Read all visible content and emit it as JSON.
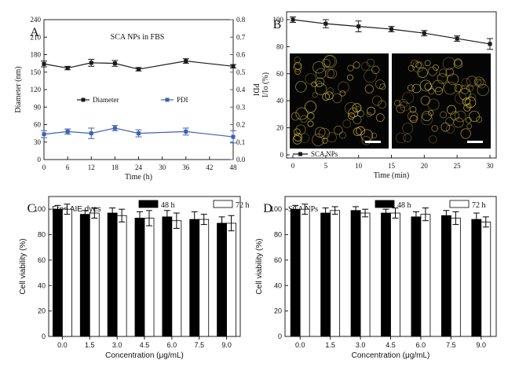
{
  "chart_data": [
    {
      "panel": "A",
      "type": "line",
      "annotation": "SCA NPs in FBS",
      "xlabel": "Time (h)",
      "ylabel": "Diameter (nm)",
      "y2label": "PDI",
      "xlim": [
        0,
        48
      ],
      "xticks": [
        0,
        6,
        12,
        18,
        24,
        30,
        36,
        42,
        48
      ],
      "ylim": [
        0,
        240
      ],
      "yticks": [
        0,
        30,
        60,
        90,
        120,
        150,
        180,
        210,
        240
      ],
      "y2lim": [
        0,
        0.8
      ],
      "y2ticks": [
        "0.0",
        "0.1",
        "0.2",
        "0.3",
        "0.4",
        "0.5",
        "0.6",
        "0.7",
        "0.8"
      ],
      "series": [
        {
          "name": "Diameter",
          "axis": "left",
          "color": "#1a1a1a",
          "marker": "square",
          "x": [
            0,
            6,
            12,
            18,
            24,
            36,
            48
          ],
          "values": [
            164,
            157,
            166,
            165,
            155,
            169,
            160
          ],
          "errors": [
            5,
            3,
            6,
            5,
            3,
            4,
            3
          ]
        },
        {
          "name": "PDI",
          "axis": "right",
          "color": "#3a62b0",
          "marker": "square",
          "x": [
            0,
            6,
            12,
            18,
            24,
            36,
            48
          ],
          "values": [
            0.145,
            0.16,
            0.15,
            0.18,
            0.15,
            0.16,
            0.13
          ],
          "errors": [
            0.02,
            0.015,
            0.03,
            0.015,
            0.02,
            0.02,
            0.035
          ]
        }
      ]
    },
    {
      "panel": "B",
      "type": "line",
      "xlabel": "Time (min)",
      "ylabel": "I/Io (%)",
      "xlim": [
        0,
        30
      ],
      "xticks": [
        0,
        5,
        10,
        15,
        20,
        25,
        30
      ],
      "ylim": [
        0,
        100
      ],
      "yticks": [
        0,
        20,
        40,
        60,
        80,
        100
      ],
      "series": [
        {
          "name": "SCA NPs",
          "color": "#1a1a1a",
          "marker": "square",
          "x": [
            0,
            5,
            10,
            15,
            20,
            25,
            30
          ],
          "values": [
            100,
            97,
            95,
            93,
            90,
            86,
            82
          ],
          "errors": [
            2,
            3,
            4,
            2,
            2,
            2,
            4
          ]
        }
      ],
      "insets": [
        "fluorescence-micrograph-1",
        "fluorescence-micrograph-2"
      ]
    },
    {
      "panel": "C",
      "type": "bar",
      "annotation": "Free AIE dyes",
      "xlabel": "Concentration (μg/mL)",
      "ylabel": "Cell viability (%)",
      "categories": [
        "0.0",
        "1.5",
        "3.0",
        "4.5",
        "6.0",
        "7.5",
        "9.0"
      ],
      "ylim": [
        0,
        110
      ],
      "yticks": [
        0,
        20,
        40,
        60,
        80,
        100
      ],
      "series": [
        {
          "name": "48 h",
          "color": "#000000",
          "values": [
            100,
            96,
            97,
            93,
            94,
            92,
            89
          ],
          "errors": [
            3,
            3,
            4,
            5,
            5,
            6,
            5
          ]
        },
        {
          "name": "72 h",
          "color": "#ffffff",
          "values": [
            100,
            97,
            95,
            93,
            91,
            92,
            89
          ],
          "errors": [
            4,
            4,
            5,
            6,
            6,
            4,
            6
          ]
        }
      ]
    },
    {
      "panel": "D",
      "type": "bar",
      "annotation": "SCA NPs",
      "xlabel": "Concentration (μg/mL)",
      "ylabel": "Cell viability (%)",
      "categories": [
        "0.0",
        "1.5",
        "3.0",
        "4.5",
        "6.0",
        "7.5",
        "9.0"
      ],
      "ylim": [
        0,
        110
      ],
      "yticks": [
        0,
        20,
        40,
        60,
        80,
        100
      ],
      "series": [
        {
          "name": "48 h",
          "color": "#000000",
          "values": [
            100,
            97,
            99,
            97,
            94,
            95,
            92
          ],
          "errors": [
            3,
            4,
            3,
            3,
            4,
            4,
            5
          ]
        },
        {
          "name": "72 h",
          "color": "#ffffff",
          "values": [
            100,
            99,
            97,
            97,
            96,
            93,
            90
          ],
          "errors": [
            4,
            3,
            3,
            4,
            5,
            5,
            4
          ]
        }
      ]
    }
  ]
}
